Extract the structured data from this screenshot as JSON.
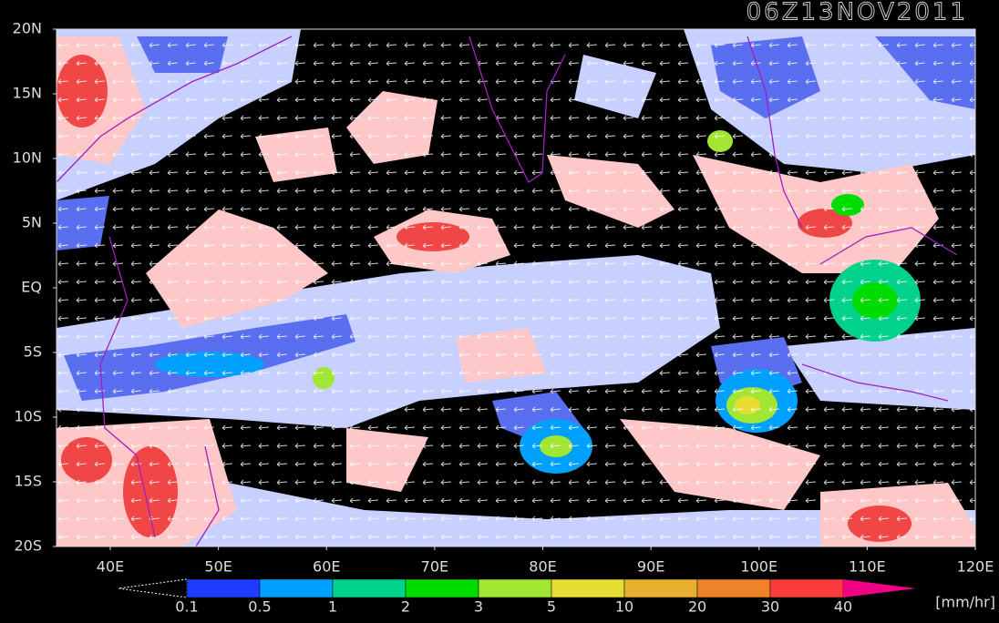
{
  "title": "06Z13NOV2011",
  "lat_labels": [
    "20N",
    "15N",
    "10N",
    "5N",
    "EQ",
    "5S",
    "10S",
    "15S",
    "20S"
  ],
  "lon_labels": [
    "40E",
    "50E",
    "60E",
    "70E",
    "80E",
    "90E",
    "100E",
    "110E",
    "120E"
  ],
  "colorbar": {
    "levels": [
      0.1,
      0.5,
      1,
      2,
      3,
      5,
      10,
      20,
      30,
      40
    ],
    "colors": [
      "#1e3cff",
      "#00a0ff",
      "#00d28c",
      "#00dc00",
      "#a0e632",
      "#e6dc32",
      "#e6af2d",
      "#f08228",
      "#fa3c3c",
      "#f00082"
    ],
    "unit": "[mm/hr]"
  }
}
